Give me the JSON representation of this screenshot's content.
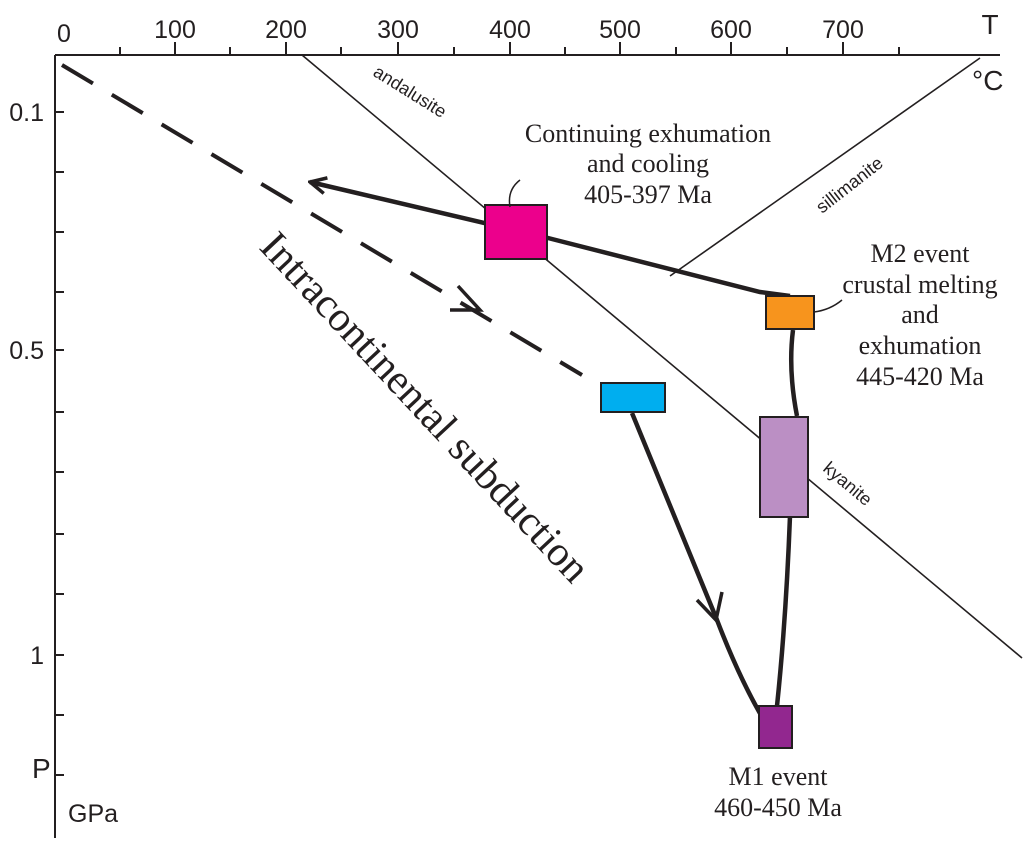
{
  "axes": {
    "t_label": "T",
    "t_unit": "°C",
    "p_label": "P",
    "p_unit": "GPa",
    "t_ticks": [
      "0",
      "100",
      "200",
      "300",
      "400",
      "500",
      "600",
      "700"
    ],
    "p_ticks": [
      "0.1",
      "0.5",
      "1"
    ]
  },
  "phase_lines": {
    "andalusite": "andalusite",
    "sillimanite": "sillimanite",
    "kyanite": "kyanite"
  },
  "subduction_label": "Intracontinental subduction",
  "events": {
    "continuing": {
      "line1": "Continuing exhumation",
      "line2": "and cooling",
      "line3": "405-397 Ma",
      "color": "#ec008c"
    },
    "m2": {
      "line1": "M2 event",
      "line2": "crustal melting",
      "line3": "and",
      "line4": "exhumation",
      "line5": "445-420 Ma",
      "color": "#f7941d"
    },
    "m1": {
      "line1": "M1 event",
      "line2": "460-450 Ma",
      "color": "#92278f"
    },
    "blue_color": "#00aeef",
    "lilac_color": "#bb8fc4"
  }
}
